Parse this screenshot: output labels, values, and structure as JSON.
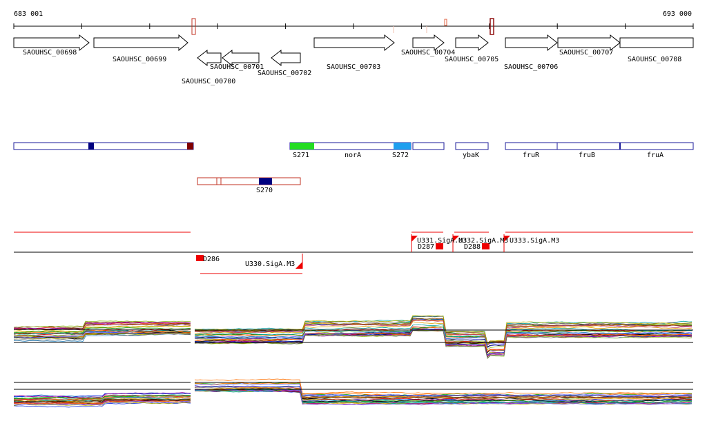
{
  "coords": {
    "start": "683 001",
    "end": "693 000"
  },
  "colors": {
    "feature_outline": "#1a1a99",
    "dark_marker": "#000080",
    "dark_red": "#800000",
    "green_marker": "#22dd22",
    "blue_marker": "#1e9fef",
    "red": "#ee0000"
  },
  "genes": [
    {
      "label": "SAOUHSC_00698"
    },
    {
      "label": "SAOUHSC_00699"
    },
    {
      "label": "SAOUHSC_00700"
    },
    {
      "label": "SAOUHSC_00701"
    },
    {
      "label": "SAOUHSC_00702"
    },
    {
      "label": "SAOUHSC_00703"
    },
    {
      "label": "SAOUHSC_00704"
    },
    {
      "label": "SAOUHSC_00705"
    },
    {
      "label": "SAOUHSC_00706"
    },
    {
      "label": "SAOUHSC_00707"
    },
    {
      "label": "SAOUHSC_00708"
    }
  ],
  "features": [
    {
      "label": "S271"
    },
    {
      "label": "norA"
    },
    {
      "label": "S272"
    },
    {
      "label": "ybaK"
    },
    {
      "label": "fruR"
    },
    {
      "label": "fruB"
    },
    {
      "label": "fruA"
    },
    {
      "label": "S270"
    }
  ],
  "promoters": [
    {
      "label": "D286"
    },
    {
      "label": "U330.SigA.M3"
    },
    {
      "label": "U331.SigA.M3"
    },
    {
      "label": "D287"
    },
    {
      "label": "U332.SigA.M3"
    },
    {
      "label": "D288"
    },
    {
      "label": "U333.SigA.M3"
    }
  ]
}
